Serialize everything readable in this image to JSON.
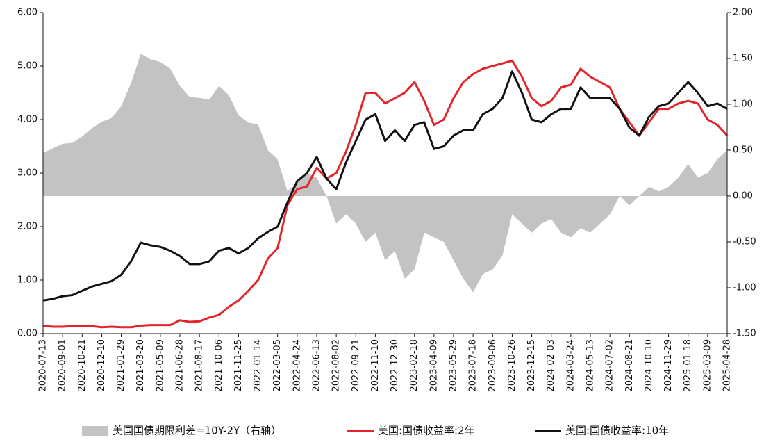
{
  "chart_data": {
    "type": "line",
    "categories": [
      "2020-07-13",
      null,
      "2020-09-01",
      null,
      "2020-10-21",
      null,
      "2020-12-10",
      null,
      "2021-01-29",
      null,
      "2021-03-20",
      null,
      "2021-05-09",
      null,
      "2021-06-28",
      null,
      "2021-08-17",
      null,
      "2021-10-06",
      null,
      "2021-11-25",
      null,
      "2022-01-14",
      null,
      "2022-03-05",
      null,
      "2022-04-24",
      null,
      "2022-06-13",
      null,
      "2022-08-02",
      null,
      "2022-09-21",
      null,
      "2022-11-10",
      null,
      "2022-12-30",
      null,
      "2023-02-18",
      null,
      "2023-04-09",
      null,
      "2023-05-29",
      null,
      "2023-07-18",
      null,
      "2023-09-06",
      null,
      "2023-10-26",
      null,
      "2023-12-15",
      null,
      "2024-02-03",
      null,
      "2024-03-24",
      null,
      "2024-05-13",
      null,
      "2024-07-02",
      null,
      "2024-08-21",
      null,
      "2024-10-10",
      null,
      "2024-11-29",
      null,
      "2025-01-18",
      null,
      "2025-03-09",
      null,
      "2025-04-28"
    ],
    "series": [
      {
        "name": "美国国债期限利差=10Y-2Y（右轴）",
        "type": "area",
        "axis": "y2",
        "color": "#c3c3c3",
        "values": [
          0.47,
          0.52,
          0.57,
          0.58,
          0.65,
          0.74,
          0.81,
          0.85,
          0.98,
          1.23,
          1.55,
          1.49,
          1.46,
          1.39,
          1.2,
          1.08,
          1.07,
          1.05,
          1.2,
          1.1,
          0.88,
          0.8,
          0.78,
          0.5,
          0.4,
          0.05,
          0.15,
          0.25,
          0.2,
          0.0,
          -0.3,
          -0.2,
          -0.3,
          -0.5,
          -0.4,
          -0.7,
          -0.6,
          -0.9,
          -0.8,
          -0.4,
          -0.45,
          -0.5,
          -0.7,
          -0.9,
          -1.05,
          -0.85,
          -0.8,
          -0.65,
          -0.2,
          -0.3,
          -0.4,
          -0.3,
          -0.25,
          -0.4,
          -0.45,
          -0.35,
          -0.4,
          -0.3,
          -0.2,
          0.0,
          -0.1,
          0.0,
          0.1,
          0.05,
          0.1,
          0.2,
          0.35,
          0.2,
          0.25,
          0.4,
          0.5
        ]
      },
      {
        "name": "美国:国债收益率:2年",
        "type": "line",
        "color": "#e0262b",
        "values": [
          0.15,
          0.13,
          0.13,
          0.14,
          0.15,
          0.14,
          0.12,
          0.13,
          0.12,
          0.12,
          0.15,
          0.16,
          0.16,
          0.16,
          0.25,
          0.22,
          0.23,
          0.3,
          0.35,
          0.5,
          0.62,
          0.8,
          1.0,
          1.4,
          1.6,
          2.4,
          2.7,
          2.75,
          3.1,
          2.9,
          3.0,
          3.4,
          3.9,
          4.5,
          4.5,
          4.3,
          4.4,
          4.5,
          4.7,
          4.35,
          3.9,
          4.0,
          4.4,
          4.7,
          4.85,
          4.95,
          5.0,
          5.05,
          5.1,
          4.8,
          4.4,
          4.25,
          4.35,
          4.6,
          4.65,
          4.95,
          4.8,
          4.7,
          4.6,
          4.2,
          3.95,
          3.7,
          3.95,
          4.2,
          4.2,
          4.3,
          4.35,
          4.3,
          4.0,
          3.9,
          3.7
        ]
      },
      {
        "name": "美国:国债收益率:10年",
        "type": "line",
        "color": "#111111",
        "values": [
          0.62,
          0.65,
          0.7,
          0.72,
          0.8,
          0.88,
          0.93,
          0.98,
          1.1,
          1.35,
          1.7,
          1.65,
          1.62,
          1.55,
          1.45,
          1.3,
          1.3,
          1.35,
          1.55,
          1.6,
          1.5,
          1.6,
          1.78,
          1.9,
          2.0,
          2.45,
          2.85,
          3.0,
          3.3,
          2.9,
          2.7,
          3.2,
          3.6,
          4.0,
          4.1,
          3.6,
          3.8,
          3.6,
          3.9,
          3.95,
          3.45,
          3.5,
          3.7,
          3.8,
          3.8,
          4.1,
          4.2,
          4.4,
          4.9,
          4.5,
          4.0,
          3.95,
          4.1,
          4.2,
          4.2,
          4.6,
          4.4,
          4.4,
          4.4,
          4.2,
          3.85,
          3.7,
          4.05,
          4.25,
          4.3,
          4.5,
          4.7,
          4.5,
          4.25,
          4.3,
          4.2
        ]
      }
    ],
    "ylim": [
      0,
      6
    ],
    "yticks": [
      {
        "value": 0,
        "label": "0.00"
      },
      {
        "value": 1,
        "label": "1.00"
      },
      {
        "value": 2,
        "label": "2.00"
      },
      {
        "value": 3,
        "label": "3.00"
      },
      {
        "value": 4,
        "label": "4.00"
      },
      {
        "value": 5,
        "label": "5.00"
      },
      {
        "value": 6,
        "label": "6.00"
      }
    ],
    "y2lim": [
      -1.5,
      2
    ],
    "y2ticks": [
      {
        "value": -1.5,
        "label": "-1.50"
      },
      {
        "value": -1,
        "label": "-1.00"
      },
      {
        "value": -0.5,
        "label": "-0.50"
      },
      {
        "value": 0,
        "label": "0.00"
      },
      {
        "value": 0.5,
        "label": "0.50"
      },
      {
        "value": 1,
        "label": "1.00"
      },
      {
        "value": 1.5,
        "label": "1.50"
      },
      {
        "value": 2,
        "label": "2.00"
      }
    ],
    "grid": false,
    "legend": "bottom"
  }
}
